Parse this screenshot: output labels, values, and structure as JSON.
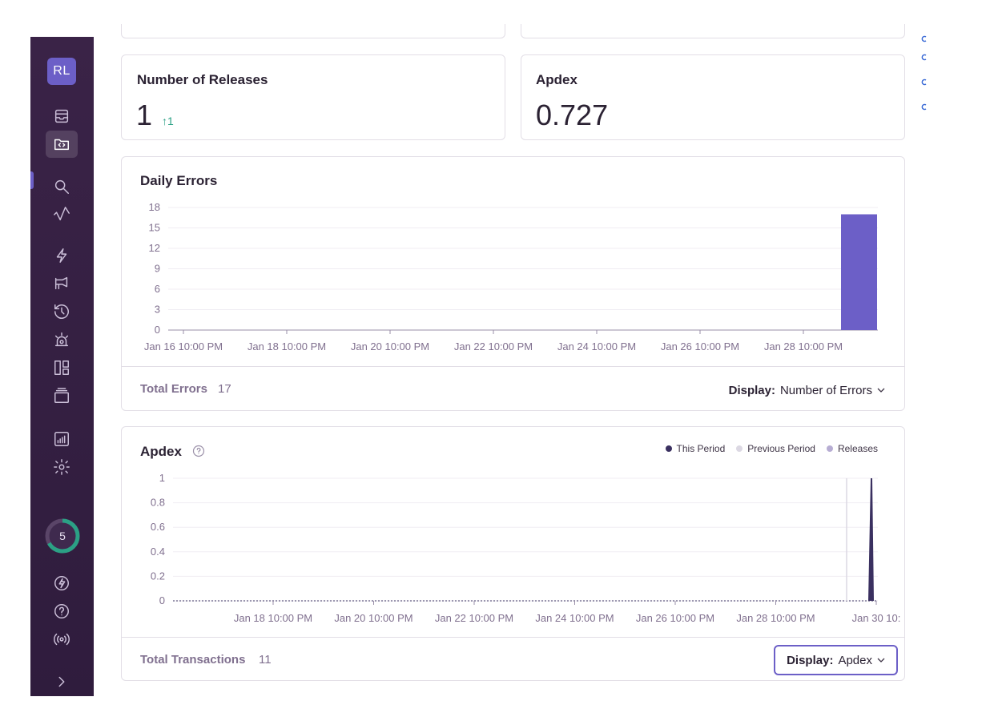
{
  "sidebar": {
    "org_initials": "RL",
    "nav": [
      {
        "icon": "issues-inbox-icon"
      },
      {
        "icon": "projects-icon",
        "active": true
      },
      {
        "icon": "search-icon"
      },
      {
        "icon": "performance-icon"
      },
      {
        "icon": "releases-icon"
      },
      {
        "icon": "feedback-megaphone-icon"
      },
      {
        "icon": "history-icon"
      },
      {
        "icon": "alerts-siren-icon"
      },
      {
        "icon": "dashboards-icon"
      },
      {
        "icon": "discover-stack-icon"
      },
      {
        "icon": "stats-icon"
      },
      {
        "icon": "settings-gear-icon"
      }
    ],
    "onboarding_count": "5",
    "bottom": [
      {
        "icon": "broadcast-lightning-icon"
      },
      {
        "icon": "help-question-icon"
      },
      {
        "icon": "service-status-icon"
      },
      {
        "icon": "collapse-chevron-icon"
      }
    ]
  },
  "releases_card": {
    "title": "Number of Releases",
    "value": "1",
    "delta": "↑1"
  },
  "apdex_card": {
    "title": "Apdex",
    "value": "0.727"
  },
  "daily_errors": {
    "title": "Daily Errors",
    "footer_label": "Total Errors",
    "footer_value": "17",
    "display_key": "Display:",
    "display_value": "Number of Errors"
  },
  "apdex_chart": {
    "title": "Apdex",
    "legend": [
      "This Period",
      "Previous Period",
      "Releases"
    ],
    "footer_label": "Total Transactions",
    "footer_value": "11",
    "display_key": "Display:",
    "display_value": "Apdex"
  },
  "colors": {
    "accent": "#6c5fc7",
    "bar": "#6c5fc7",
    "this_period": "#3a3060",
    "previous_period": "#dcd8e3",
    "releases": "#b7add3",
    "delta_green": "#2ba185"
  },
  "chart_data": [
    {
      "type": "bar",
      "title": "Daily Errors",
      "categories": [
        "Jan 16 10:00 PM",
        "Jan 18 10:00 PM",
        "Jan 20 10:00 PM",
        "Jan 22 10:00 PM",
        "Jan 24 10:00 PM",
        "Jan 26 10:00 PM",
        "Jan 28 10:00 PM"
      ],
      "yticks": [
        0,
        3,
        6,
        9,
        12,
        15,
        18
      ],
      "ylim": [
        0,
        18
      ],
      "series": [
        {
          "x": "Jan 29 10:00 PM",
          "value": 17
        }
      ],
      "grid": true
    },
    {
      "type": "area",
      "title": "Apdex",
      "xticks": [
        "Jan 18 10:00 PM",
        "Jan 20 10:00 PM",
        "Jan 22 10:00 PM",
        "Jan 24 10:00 PM",
        "Jan 26 10:00 PM",
        "Jan 28 10:00 PM",
        "Jan 30 10:"
      ],
      "yticks": [
        "0",
        "0.2",
        "0.4",
        "0.6",
        "0.8",
        "1"
      ],
      "ylim": [
        0,
        1
      ],
      "legend_position": "top-right",
      "grid": true
    }
  ]
}
